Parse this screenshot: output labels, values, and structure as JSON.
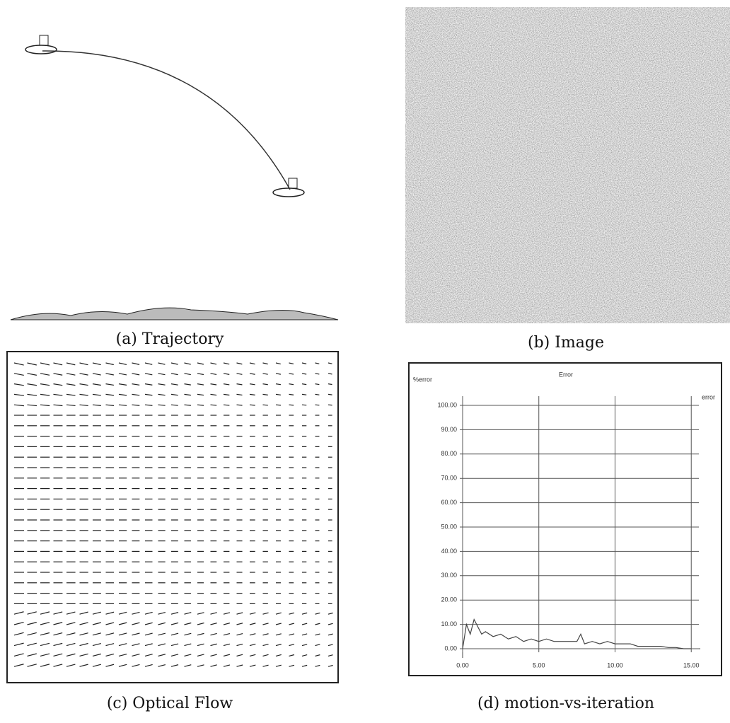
{
  "captions": [
    "(a) Trajectory",
    "(b) Image",
    "(c) Optical Flow",
    "(d) motion-vs-iteration"
  ],
  "chart_data": {
    "type": "line",
    "title": "Error",
    "ylabel": "%error",
    "x": [
      0,
      0.25,
      0.5,
      0.75,
      1.0,
      1.25,
      1.5,
      2,
      2.5,
      3,
      3.5,
      4,
      4.5,
      5,
      5.5,
      6,
      6.5,
      7,
      7.5,
      7.75,
      8,
      8.5,
      9,
      9.5,
      10,
      10.5,
      11,
      11.5,
      12,
      12.5,
      13,
      13.5,
      14,
      14.5,
      15
    ],
    "series": [
      {
        "name": "error",
        "color": "#444444",
        "values": [
          0,
          10,
          6,
          12,
          9,
          6,
          7,
          5,
          6,
          4,
          5,
          3,
          4,
          3,
          4,
          3,
          3,
          3,
          3,
          6,
          2,
          3,
          2,
          3,
          2,
          2,
          2,
          1,
          1,
          1,
          1,
          0.5,
          0.5,
          0,
          0
        ]
      }
    ],
    "xlim": [
      0,
      15.5
    ],
    "ylim": [
      0,
      100
    ],
    "xticks": [
      {
        "value": 0,
        "label": "0.00"
      },
      {
        "value": 5,
        "label": "5.00"
      },
      {
        "value": 10,
        "label": "10.00"
      },
      {
        "value": 15,
        "label": "15.00"
      }
    ],
    "yticks": [
      {
        "value": 0,
        "label": "0.00"
      },
      {
        "value": 10,
        "label": "10.00"
      },
      {
        "value": 20,
        "label": "20.00"
      },
      {
        "value": 30,
        "label": "30.00"
      },
      {
        "value": 40,
        "label": "40.00"
      },
      {
        "value": 50,
        "label": "50.00"
      },
      {
        "value": 60,
        "label": "60.00"
      },
      {
        "value": 70,
        "label": "70.00"
      },
      {
        "value": 80,
        "label": "80.00"
      },
      {
        "value": 90,
        "label": "90.00"
      },
      {
        "value": 100,
        "label": "100.00"
      }
    ],
    "grid": true
  }
}
